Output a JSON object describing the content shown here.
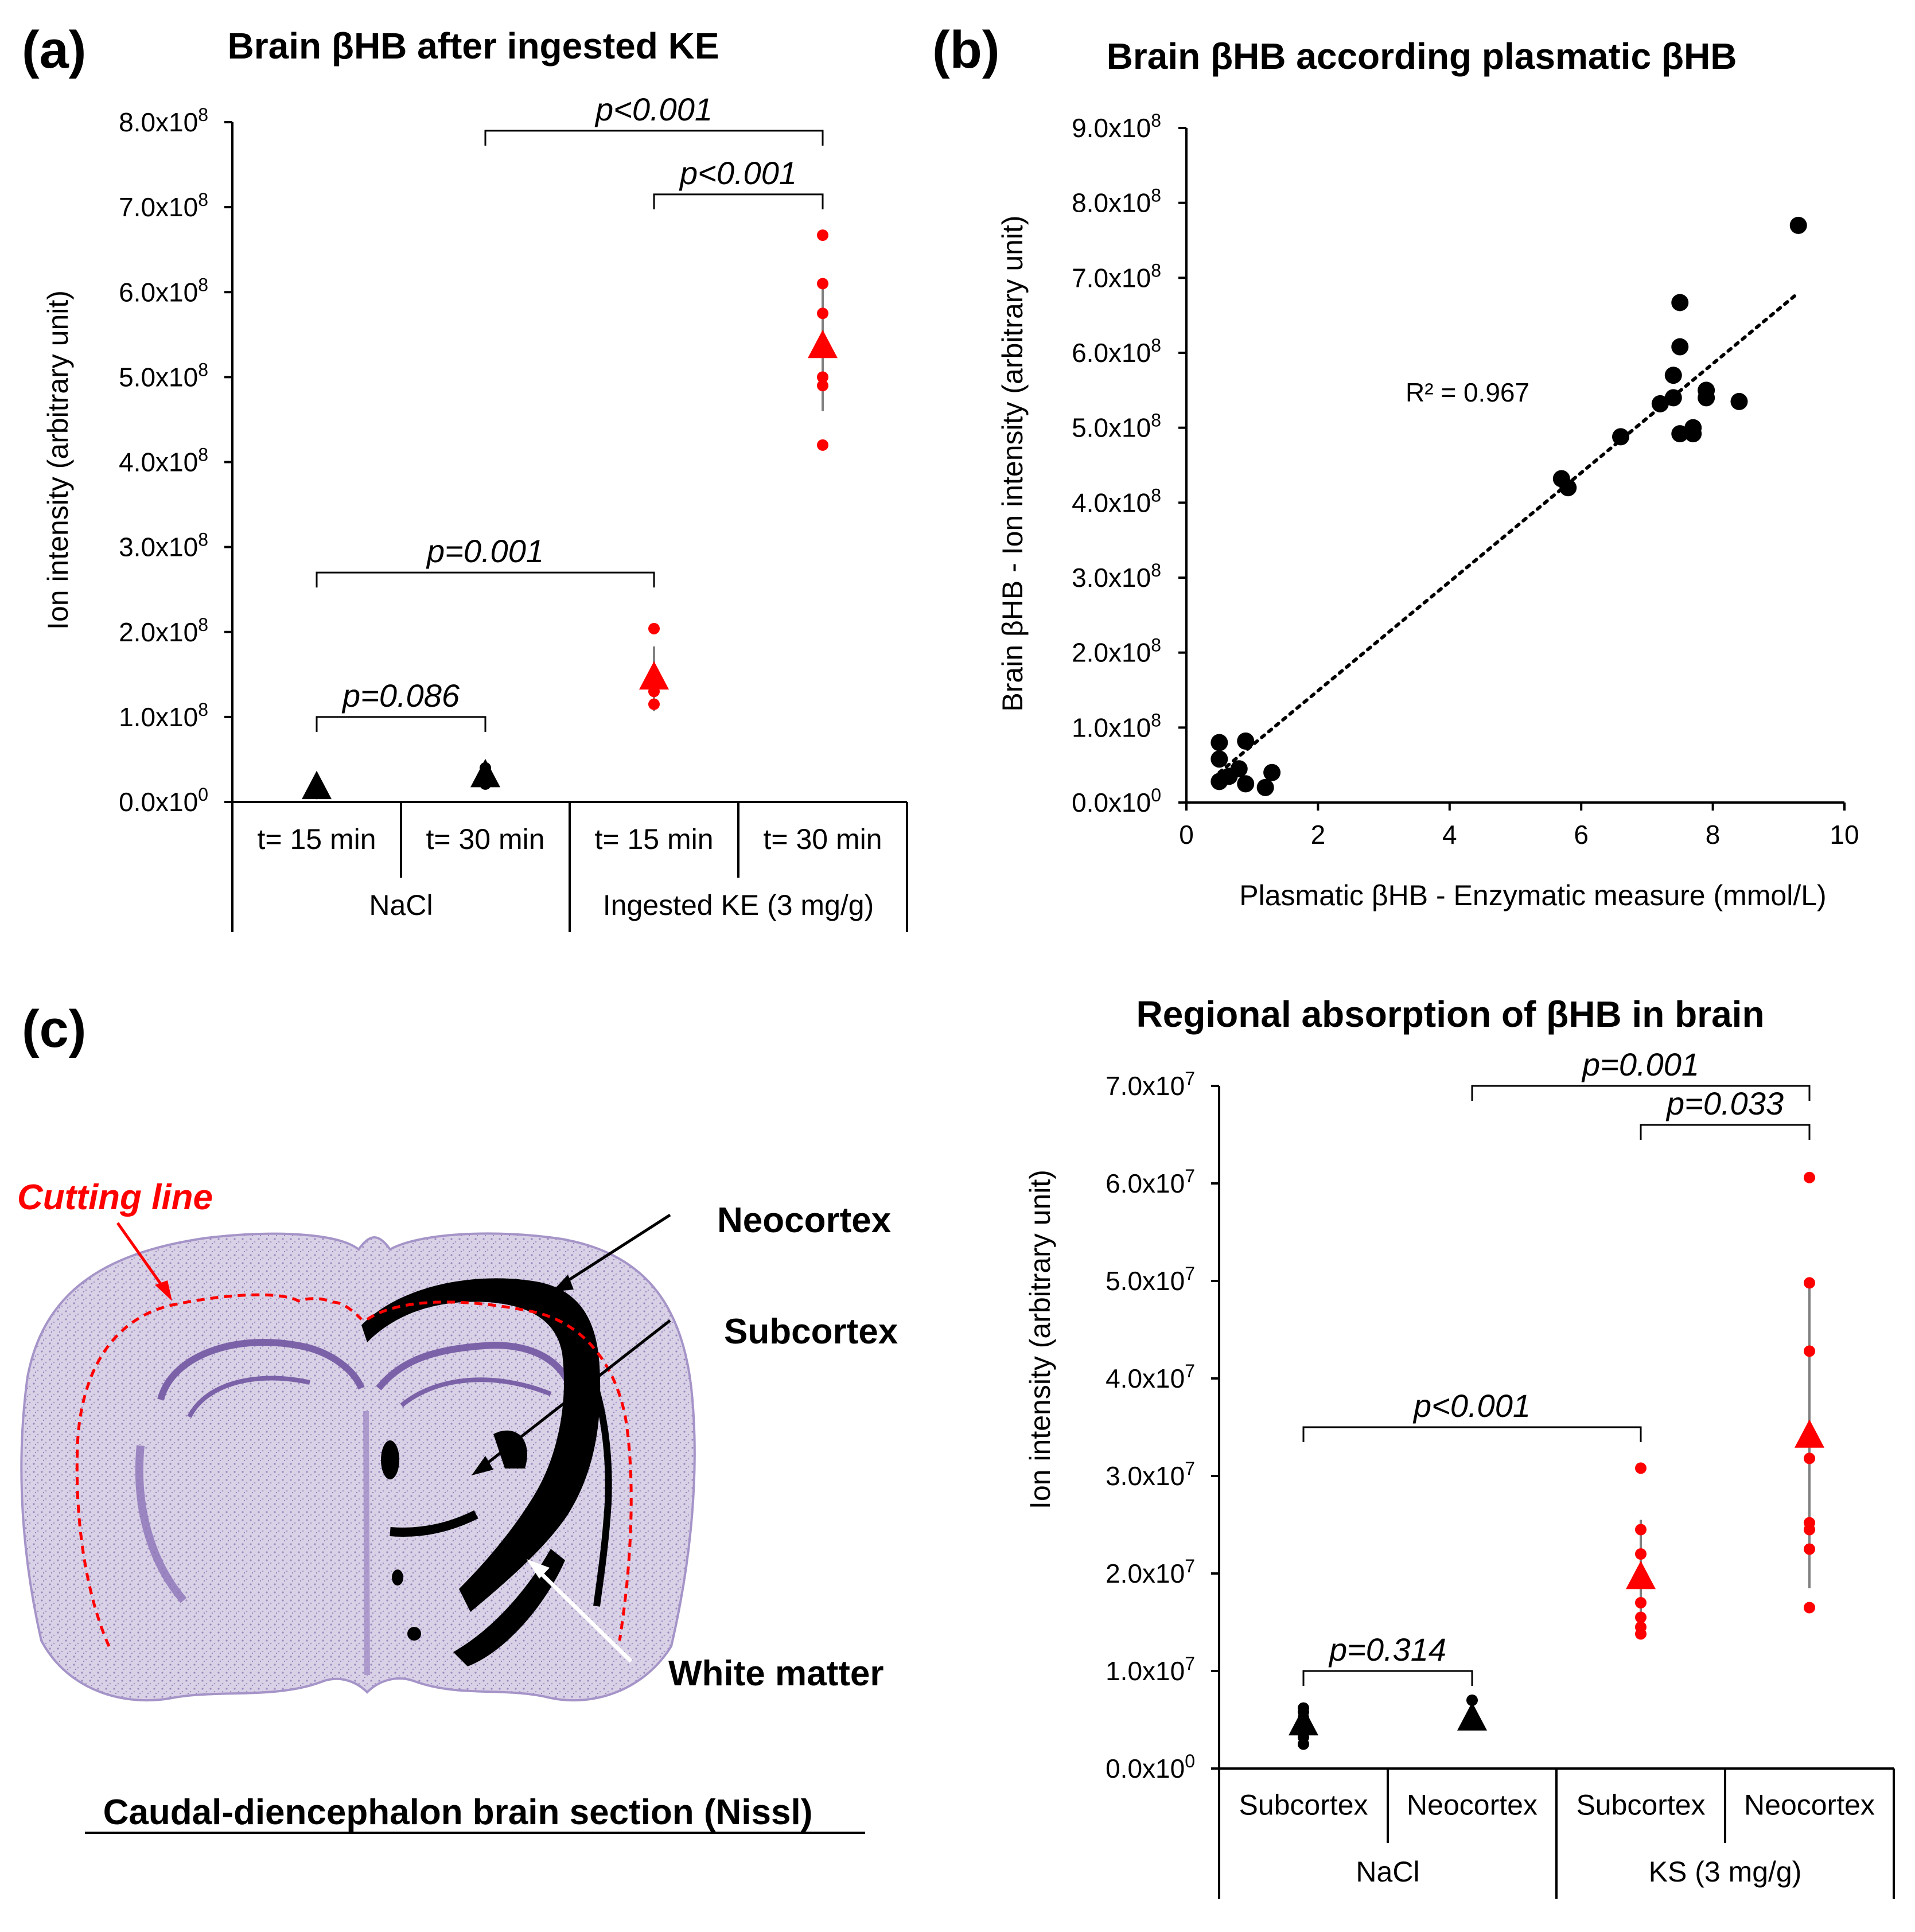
{
  "panel_labels": {
    "a": "(a)",
    "b": "(b)",
    "c": "(c)"
  },
  "chart_data": [
    {
      "type": "scatter",
      "id": "a",
      "title": "Brain βHB after ingested KE",
      "ylabel": "Ion intensity (arbitrary unit)",
      "ylim": [
        0,
        800000000
      ],
      "yticks": [
        "0.0x10",
        "1.0x10",
        "2.0x10",
        "3.0x10",
        "4.0x10",
        "5.0x10",
        "6.0x10",
        "7.0x10",
        "8.0x10"
      ],
      "ytick_exps": [
        "0",
        "8",
        "8",
        "8",
        "8",
        "8",
        "8",
        "8",
        "8"
      ],
      "categories": [
        "t= 15 min",
        "t= 30 min",
        "t= 15 min",
        "t= 30 min"
      ],
      "groups": [
        "NaCl",
        "Ingested KE (3 mg/g)"
      ],
      "series": [
        {
          "category": "t= 15 min",
          "group": "NaCl",
          "color": "#000000",
          "mean": 16000000,
          "sd": 3000000,
          "points": [
            10000000,
            14000000,
            18000000,
            21000000
          ]
        },
        {
          "category": "t= 30 min",
          "group": "NaCl",
          "color": "#000000",
          "mean": 30000000,
          "sd": 8000000,
          "points": [
            21000000,
            26000000,
            32000000,
            40000000
          ]
        },
        {
          "category": "t= 15 min",
          "group": "Ingested KE (3 mg/g)",
          "color": "#ff0000",
          "mean": 145000000,
          "sd": 38000000,
          "points": [
            115000000,
            130000000,
            204000000
          ]
        },
        {
          "category": "t= 30 min",
          "group": "Ingested KE (3 mg/g)",
          "color": "#ff0000",
          "mean": 535000000,
          "sd": 75000000,
          "points": [
            420000000,
            490000000,
            500000000,
            575000000,
            610000000,
            667000000
          ]
        }
      ],
      "comparisons": [
        {
          "from": 0,
          "to": 1,
          "label": "p=0.086",
          "y": 100000000
        },
        {
          "from": 0,
          "to": 2,
          "label": "p=0.001",
          "y": 270000000
        },
        {
          "from": 2,
          "to": 3,
          "label": "p<0.001",
          "y": 715000000
        },
        {
          "from": 1,
          "to": 3,
          "label": "p<0.001",
          "y": 790000000
        }
      ]
    },
    {
      "type": "scatter",
      "id": "b",
      "title": "Brain βHB according plasmatic βHB",
      "xlabel": "Plasmatic βHB - Enzymatic measure (mmol/L)",
      "ylabel": "Brain βHB - Ion intensity (arbitrary unit)",
      "xlim": [
        0,
        10
      ],
      "ylim": [
        0,
        900000000
      ],
      "xticks": [
        0,
        2,
        4,
        6,
        8,
        10
      ],
      "yticks": [
        "0.0x10",
        "1.0x10",
        "2.0x10",
        "3.0x10",
        "4.0x10",
        "5.0x10",
        "6.0x10",
        "7.0x10",
        "8.0x10",
        "9.0x10"
      ],
      "ytick_exps": [
        "0",
        "8",
        "8",
        "8",
        "8",
        "8",
        "8",
        "8",
        "8",
        "8"
      ],
      "r2": "R² = 0.967",
      "trendline": {
        "x": [
          0.5,
          9.3
        ],
        "y": [
          40000000,
          680000000
        ]
      },
      "points": [
        {
          "x": 0.5,
          "y": 80000000
        },
        {
          "x": 0.5,
          "y": 58000000
        },
        {
          "x": 0.5,
          "y": 28000000
        },
        {
          "x": 0.65,
          "y": 35000000
        },
        {
          "x": 0.8,
          "y": 45000000
        },
        {
          "x": 0.9,
          "y": 82000000
        },
        {
          "x": 0.9,
          "y": 25000000
        },
        {
          "x": 1.2,
          "y": 20000000
        },
        {
          "x": 1.3,
          "y": 40000000
        },
        {
          "x": 5.7,
          "y": 432000000
        },
        {
          "x": 5.8,
          "y": 420000000
        },
        {
          "x": 6.6,
          "y": 488000000
        },
        {
          "x": 7.2,
          "y": 532000000
        },
        {
          "x": 7.4,
          "y": 540000000
        },
        {
          "x": 7.4,
          "y": 570000000
        },
        {
          "x": 7.5,
          "y": 608000000
        },
        {
          "x": 7.5,
          "y": 667000000
        },
        {
          "x": 7.5,
          "y": 492000000
        },
        {
          "x": 7.7,
          "y": 492000000
        },
        {
          "x": 7.7,
          "y": 500000000
        },
        {
          "x": 7.9,
          "y": 540000000
        },
        {
          "x": 7.9,
          "y": 550000000
        },
        {
          "x": 8.4,
          "y": 535000000
        },
        {
          "x": 9.3,
          "y": 770000000
        }
      ]
    },
    {
      "type": "scatter",
      "id": "c-chart",
      "title": "Regional absorption of βHB in brain",
      "ylabel": "Ion intensity (arbitrary unit)",
      "ylim": [
        0,
        70000000
      ],
      "yticks": [
        "0.0x10",
        "1.0x10",
        "2.0x10",
        "3.0x10",
        "4.0x10",
        "5.0x10",
        "6.0x10",
        "7.0x10"
      ],
      "ytick_exps": [
        "0",
        "7",
        "7",
        "7",
        "7",
        "7",
        "7",
        "7"
      ],
      "categories": [
        "Subcortex",
        "Neocortex",
        "Subcortex",
        "Neocortex"
      ],
      "groups": [
        "NaCl",
        "KS (3 mg/g)"
      ],
      "series": [
        {
          "category": "Subcortex",
          "group": "NaCl",
          "color": "#000000",
          "mean": 4500000,
          "sd": 1000000,
          "points": [
            2500000,
            3200000,
            3800000,
            4500000,
            5200000,
            5800000,
            6200000
          ]
        },
        {
          "category": "Neocortex",
          "group": "NaCl",
          "color": "#000000",
          "mean": 5000000,
          "sd": 500000,
          "points": [
            4800000,
            5500000,
            7000000
          ]
        },
        {
          "category": "Subcortex",
          "group": "KS (3 mg/g)",
          "color": "#ff0000",
          "mean": 19500000,
          "sd": 6000000,
          "points": [
            13800000,
            14500000,
            15500000,
            17000000,
            19000000,
            22000000,
            24500000,
            30800000
          ]
        },
        {
          "category": "Neocortex",
          "group": "KS (3 mg/g)",
          "color": "#ff0000",
          "mean": 34000000,
          "sd": 15500000,
          "points": [
            16500000,
            22500000,
            24500000,
            25200000,
            31800000,
            42800000,
            49800000,
            60600000
          ]
        }
      ],
      "comparisons": [
        {
          "from": 0,
          "to": 1,
          "label": "p=0.314",
          "y": 10000000
        },
        {
          "from": 0,
          "to": 2,
          "label": "p<0.001",
          "y": 35000000
        },
        {
          "from": 2,
          "to": 3,
          "label": "p=0.033",
          "y": 66000000
        },
        {
          "from": 1,
          "to": 3,
          "label": "p=0.001",
          "y": 70000000
        }
      ]
    }
  ],
  "brain_section": {
    "caption": "Caudal-diencephalon brain section (Nissl)",
    "cutting_line_label": "Cutting line",
    "labels": [
      "Neocortex",
      "Subcortex",
      "White matter"
    ],
    "colors": {
      "tissue": "#c9bfdc",
      "stain": "#7b62a8",
      "cutting": "#ff0000"
    }
  }
}
